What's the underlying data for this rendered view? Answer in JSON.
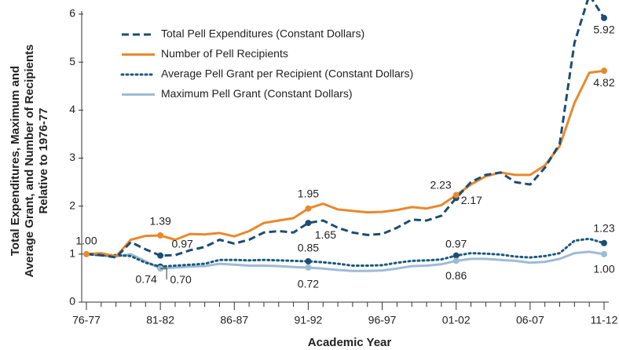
{
  "chart_data": {
    "type": "line",
    "xlabel": "Academic Year",
    "ylabel": [
      "Total Expenditures, Maximum and",
      "Average Grant, and Number of Recipients",
      "Relative to 1976-77"
    ],
    "categories": [
      "76-77",
      null,
      null,
      null,
      null,
      "81-82",
      null,
      null,
      null,
      null,
      "86-87",
      null,
      null,
      null,
      null,
      "91-92",
      null,
      null,
      null,
      null,
      "96-97",
      null,
      null,
      null,
      null,
      "01-02",
      null,
      null,
      null,
      null,
      "06-07",
      null,
      null,
      null,
      null,
      "11-12"
    ],
    "ylim": [
      0,
      6
    ],
    "yticks": [
      0,
      1,
      2,
      3,
      4,
      5,
      6
    ],
    "legend": "upper left",
    "series": [
      {
        "name": "Total Pell Expenditures (Constant Dollars)",
        "color": "#1c4d73",
        "style": "dashed",
        "values": [
          1.0,
          0.98,
          0.93,
          1.25,
          1.1,
          0.97,
          0.98,
          1.08,
          1.15,
          1.3,
          1.22,
          1.3,
          1.45,
          1.48,
          1.45,
          1.65,
          1.7,
          1.55,
          1.45,
          1.4,
          1.42,
          1.55,
          1.72,
          1.7,
          1.8,
          2.17,
          2.5,
          2.65,
          2.7,
          2.5,
          2.45,
          2.8,
          3.3,
          5.4,
          6.4,
          5.92
        ],
        "value_labels": [
          null,
          null,
          null,
          null,
          null,
          "0.97",
          null,
          null,
          null,
          null,
          null,
          null,
          null,
          null,
          null,
          "1.65",
          null,
          null,
          null,
          null,
          null,
          null,
          null,
          null,
          null,
          "2.17",
          null,
          null,
          null,
          null,
          null,
          null,
          null,
          null,
          null,
          "5.92"
        ]
      },
      {
        "name": "Number of Pell Recipients",
        "color": "#e8892b",
        "style": "solid",
        "values": [
          1.0,
          1.02,
          0.95,
          1.3,
          1.38,
          1.39,
          1.3,
          1.42,
          1.41,
          1.44,
          1.37,
          1.48,
          1.65,
          1.7,
          1.75,
          1.95,
          2.05,
          1.93,
          1.9,
          1.87,
          1.88,
          1.92,
          1.98,
          1.95,
          2.02,
          2.23,
          2.45,
          2.62,
          2.7,
          2.65,
          2.65,
          2.85,
          3.25,
          4.15,
          4.78,
          4.82
        ],
        "value_labels": [
          "1.00",
          null,
          null,
          null,
          null,
          "1.39",
          null,
          null,
          null,
          null,
          null,
          null,
          null,
          null,
          null,
          "1.95",
          null,
          null,
          null,
          null,
          null,
          null,
          null,
          null,
          null,
          "2.23",
          null,
          null,
          null,
          null,
          null,
          null,
          null,
          null,
          null,
          "4.82"
        ]
      },
      {
        "name": "Average Pell Grant per Recipient (Constant Dollars)",
        "color": "#1c5a7c",
        "style": "dotted",
        "values": [
          1.0,
          0.98,
          0.98,
          0.96,
          0.82,
          0.74,
          0.76,
          0.78,
          0.8,
          0.88,
          0.88,
          0.87,
          0.88,
          0.87,
          0.86,
          0.85,
          0.83,
          0.8,
          0.76,
          0.76,
          0.77,
          0.82,
          0.86,
          0.87,
          0.89,
          0.97,
          1.02,
          1.01,
          0.99,
          0.95,
          0.93,
          0.96,
          1.02,
          1.28,
          1.32,
          1.23
        ],
        "value_labels": [
          null,
          null,
          null,
          null,
          null,
          "0.74",
          null,
          null,
          null,
          null,
          null,
          null,
          null,
          null,
          null,
          "0.85",
          null,
          null,
          null,
          null,
          null,
          null,
          null,
          null,
          null,
          "0.97",
          null,
          null,
          null,
          null,
          null,
          null,
          null,
          null,
          null,
          "1.23"
        ]
      },
      {
        "name": "Maximum Pell Grant (Constant Dollars)",
        "color": "#9dbbd6",
        "style": "solid",
        "values": [
          1.0,
          0.97,
          0.95,
          1.0,
          0.85,
          0.7,
          0.72,
          0.74,
          0.75,
          0.8,
          0.78,
          0.76,
          0.76,
          0.75,
          0.73,
          0.72,
          0.7,
          0.67,
          0.65,
          0.65,
          0.66,
          0.7,
          0.75,
          0.76,
          0.79,
          0.86,
          0.9,
          0.9,
          0.88,
          0.86,
          0.82,
          0.84,
          0.9,
          1.02,
          1.05,
          1.0
        ],
        "value_labels": [
          null,
          null,
          null,
          null,
          null,
          "0.70",
          null,
          null,
          null,
          null,
          null,
          null,
          null,
          null,
          null,
          "0.72",
          null,
          null,
          null,
          null,
          null,
          null,
          null,
          null,
          null,
          "0.86",
          null,
          null,
          null,
          null,
          null,
          null,
          null,
          null,
          null,
          "1.00"
        ]
      }
    ]
  }
}
